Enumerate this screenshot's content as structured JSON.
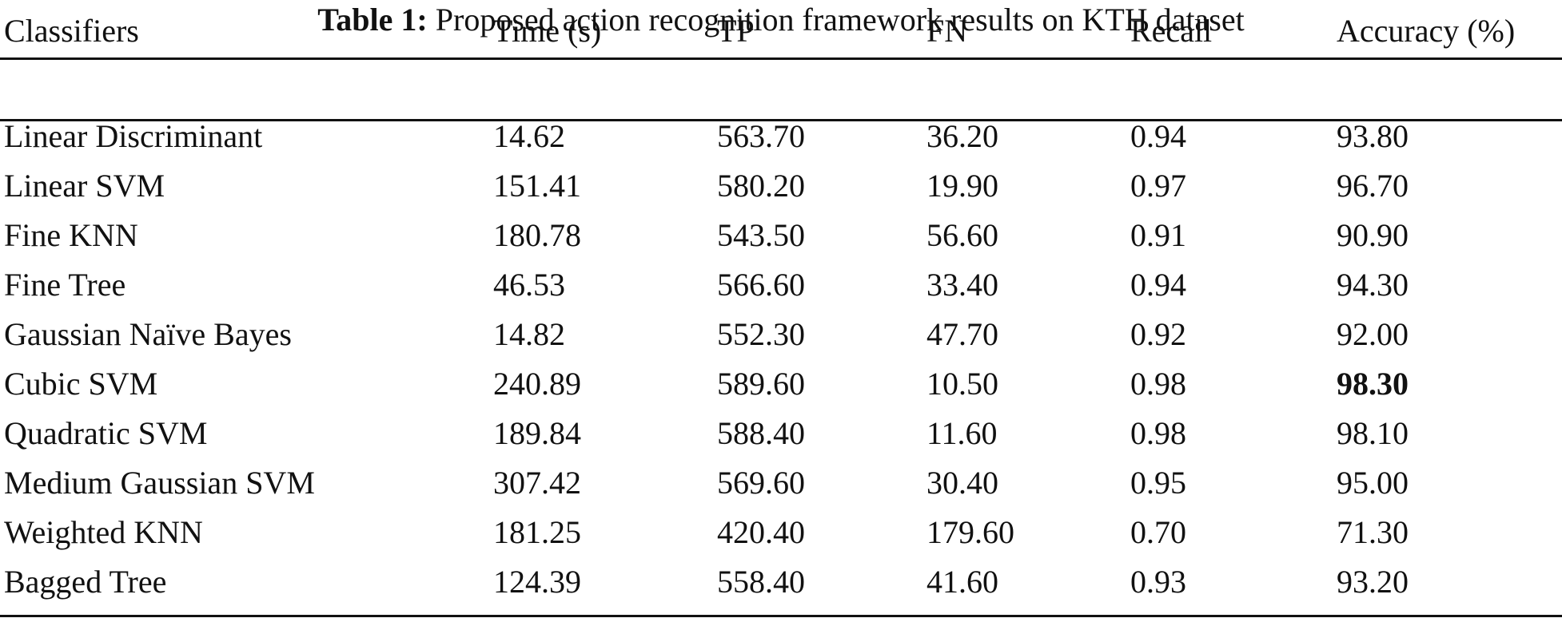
{
  "caption": {
    "label": "Table 1:",
    "text": "Proposed action recognition framework results on KTH dataset"
  },
  "table": {
    "headers": [
      "Classifiers",
      "Time (s)",
      "TP",
      "FN",
      "Recall",
      "Accuracy (%)"
    ],
    "rows": [
      [
        "Linear Discriminant",
        "14.62",
        "563.70",
        "36.20",
        "0.94",
        "93.80"
      ],
      [
        "Linear SVM",
        "151.41",
        "580.20",
        "19.90",
        "0.97",
        "96.70"
      ],
      [
        "Fine KNN",
        "180.78",
        "543.50",
        "56.60",
        "0.91",
        "90.90"
      ],
      [
        "Fine Tree",
        "46.53",
        "566.60",
        "33.40",
        "0.94",
        "94.30"
      ],
      [
        "Gaussian Naïve Bayes",
        "14.82",
        "552.30",
        "47.70",
        "0.92",
        "92.00"
      ],
      [
        "Cubic SVM",
        "240.89",
        "589.60",
        "10.50",
        "0.98",
        "98.30"
      ],
      [
        "Quadratic SVM",
        "189.84",
        "588.40",
        "11.60",
        "0.98",
        "98.10"
      ],
      [
        "Medium Gaussian SVM",
        "307.42",
        "569.60",
        "30.40",
        "0.95",
        "95.00"
      ],
      [
        "Weighted KNN",
        "181.25",
        "420.40",
        "179.60",
        "0.70",
        "71.30"
      ],
      [
        "Bagged Tree",
        "124.39",
        "558.40",
        "41.60",
        "0.93",
        "93.20"
      ]
    ],
    "best_value": "98.30"
  }
}
